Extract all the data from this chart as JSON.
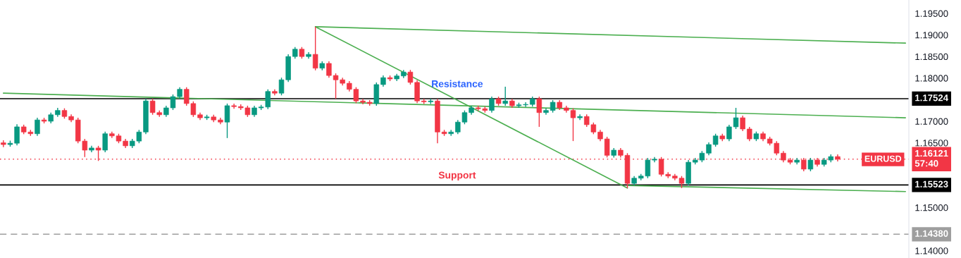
{
  "chart_data": {
    "type": "candlestick",
    "categories": [
      null,
      null,
      null,
      null,
      null,
      null,
      null,
      null,
      null,
      null,
      null,
      null,
      null,
      null,
      null,
      null,
      null,
      null,
      null,
      null,
      null,
      null,
      null,
      null,
      null,
      null,
      null,
      null,
      null,
      null,
      null,
      null,
      null,
      null,
      null,
      null,
      null,
      null,
      null,
      null,
      null,
      null,
      null,
      null,
      null,
      null,
      null,
      null,
      null,
      null,
      null,
      null,
      null,
      null,
      null,
      null,
      null,
      null,
      null,
      null,
      null,
      null,
      null,
      null,
      null,
      null,
      null,
      null,
      null,
      null,
      null,
      null,
      null,
      null,
      null,
      null,
      null,
      null,
      null,
      null,
      null,
      null,
      null,
      null,
      null,
      null,
      null,
      null,
      null,
      null,
      null,
      null,
      null,
      null,
      null,
      null,
      null,
      null,
      null,
      null,
      null,
      null,
      null,
      null,
      null,
      null,
      null,
      null,
      null,
      null,
      null,
      null,
      null,
      null,
      null,
      null,
      null,
      null,
      null,
      null,
      null,
      null,
      null,
      null,
      null,
      null,
      null,
      null,
      null,
      null,
      null,
      null,
      null,
      null
    ],
    "ohlc": [
      [
        1.165,
        1.1656,
        1.164,
        1.1646
      ],
      [
        1.1646,
        1.1655,
        1.1641,
        1.1649
      ],
      [
        1.1649,
        1.1693,
        1.1644,
        1.1687
      ],
      [
        1.1687,
        1.1692,
        1.167,
        1.1675
      ],
      [
        1.1675,
        1.168,
        1.1666,
        1.1671
      ],
      [
        1.1671,
        1.1708,
        1.1666,
        1.1703
      ],
      [
        1.1703,
        1.1708,
        1.1695,
        1.17
      ],
      [
        1.17,
        1.172,
        1.1695,
        1.1715
      ],
      [
        1.1715,
        1.1731,
        1.171,
        1.1725
      ],
      [
        1.1725,
        1.173,
        1.1706,
        1.1711
      ],
      [
        1.1711,
        1.1716,
        1.1698,
        1.1703
      ],
      [
        1.1703,
        1.1708,
        1.1649,
        1.1654
      ],
      [
        1.1654,
        1.1659,
        1.1617,
        1.1633
      ],
      [
        1.1633,
        1.1643,
        1.1628,
        1.1638
      ],
      [
        1.1638,
        1.1643,
        1.1608,
        1.1633
      ],
      [
        1.1633,
        1.1676,
        1.1628,
        1.1671
      ],
      [
        1.1671,
        1.1676,
        1.1661,
        1.1666
      ],
      [
        1.1666,
        1.1671,
        1.1649,
        1.1654
      ],
      [
        1.1654,
        1.1659,
        1.1638,
        1.1643
      ],
      [
        1.1643,
        1.1659,
        1.1638,
        1.1654
      ],
      [
        1.1654,
        1.168,
        1.1649,
        1.1675
      ],
      [
        1.1675,
        1.1752,
        1.167,
        1.1747
      ],
      [
        1.1747,
        1.1752,
        1.1715,
        1.172
      ],
      [
        1.172,
        1.1725,
        1.171,
        1.1715
      ],
      [
        1.1715,
        1.1736,
        1.171,
        1.1731
      ],
      [
        1.1731,
        1.1762,
        1.1726,
        1.1757
      ],
      [
        1.1757,
        1.1779,
        1.1752,
        1.1774
      ],
      [
        1.1774,
        1.1779,
        1.1736,
        1.1741
      ],
      [
        1.1741,
        1.1746,
        1.171,
        1.1715
      ],
      [
        1.1715,
        1.172,
        1.1703,
        1.1708
      ],
      [
        1.1708,
        1.1715,
        1.1703,
        1.171
      ],
      [
        1.171,
        1.1715,
        1.1698,
        1.1703
      ],
      [
        1.1703,
        1.1708,
        1.1693,
        1.1698
      ],
      [
        1.1698,
        1.1741,
        1.1661,
        1.1736
      ],
      [
        1.1736,
        1.1741,
        1.1729,
        1.1734
      ],
      [
        1.1734,
        1.1739,
        1.1726,
        1.1731
      ],
      [
        1.1731,
        1.1736,
        1.171,
        1.1715
      ],
      [
        1.1715,
        1.1736,
        1.171,
        1.1731
      ],
      [
        1.1731,
        1.1738,
        1.1726,
        1.1733
      ],
      [
        1.1733,
        1.1774,
        1.1728,
        1.1769
      ],
      [
        1.1769,
        1.1774,
        1.176,
        1.1765
      ],
      [
        1.1765,
        1.1801,
        1.176,
        1.1796
      ],
      [
        1.1796,
        1.1855,
        1.1791,
        1.185
      ],
      [
        1.185,
        1.1872,
        1.1845,
        1.1867
      ],
      [
        1.1867,
        1.1872,
        1.1845,
        1.185
      ],
      [
        1.185,
        1.186,
        1.1845,
        1.1855
      ],
      [
        1.1855,
        1.1919,
        1.1818,
        1.1823
      ],
      [
        1.1823,
        1.1839,
        1.1818,
        1.1834
      ],
      [
        1.1834,
        1.1839,
        1.1801,
        1.1806
      ],
      [
        1.1806,
        1.1811,
        1.1752,
        1.1796
      ],
      [
        1.1796,
        1.1801,
        1.1783,
        1.1788
      ],
      [
        1.1788,
        1.1793,
        1.1769,
        1.1774
      ],
      [
        1.1774,
        1.1779,
        1.1742,
        1.1747
      ],
      [
        1.1747,
        1.1752,
        1.1739,
        1.1744
      ],
      [
        1.1744,
        1.1749,
        1.1736,
        1.1741
      ],
      [
        1.1741,
        1.179,
        1.1736,
        1.1785
      ],
      [
        1.1785,
        1.1806,
        1.178,
        1.1801
      ],
      [
        1.1801,
        1.1806,
        1.1793,
        1.1798
      ],
      [
        1.1798,
        1.181,
        1.1793,
        1.1805
      ],
      [
        1.1805,
        1.1819,
        1.18,
        1.1814
      ],
      [
        1.1814,
        1.1819,
        1.1785,
        1.179
      ],
      [
        1.179,
        1.1795,
        1.1742,
        1.1747
      ],
      [
        1.1747,
        1.1752,
        1.174,
        1.1745
      ],
      [
        1.1745,
        1.1752,
        1.174,
        1.1747
      ],
      [
        1.1747,
        1.1752,
        1.1649,
        1.1675
      ],
      [
        1.1675,
        1.168,
        1.1666,
        1.1671
      ],
      [
        1.1671,
        1.168,
        1.1666,
        1.1675
      ],
      [
        1.1675,
        1.1703,
        1.167,
        1.1698
      ],
      [
        1.1698,
        1.1725,
        1.1693,
        1.172
      ],
      [
        1.172,
        1.1736,
        1.1715,
        1.1731
      ],
      [
        1.1731,
        1.1736,
        1.1724,
        1.1729
      ],
      [
        1.1729,
        1.1734,
        1.172,
        1.1725
      ],
      [
        1.1725,
        1.1757,
        1.172,
        1.1752
      ],
      [
        1.1752,
        1.1757,
        1.1736,
        1.1741
      ],
      [
        1.1741,
        1.178,
        1.1736,
        1.1747
      ],
      [
        1.1747,
        1.1752,
        1.1731,
        1.1736
      ],
      [
        1.1736,
        1.1743,
        1.1731,
        1.1738
      ],
      [
        1.1738,
        1.1744,
        1.1733,
        1.1739
      ],
      [
        1.1739,
        1.1757,
        1.1734,
        1.1752
      ],
      [
        1.1752,
        1.1757,
        1.1687,
        1.172
      ],
      [
        1.172,
        1.173,
        1.1715,
        1.1725
      ],
      [
        1.1725,
        1.1749,
        1.172,
        1.1744
      ],
      [
        1.1744,
        1.1749,
        1.1726,
        1.1731
      ],
      [
        1.1731,
        1.1736,
        1.172,
        1.1725
      ],
      [
        1.1725,
        1.173,
        1.1654,
        1.1708
      ],
      [
        1.1708,
        1.1716,
        1.1703,
        1.1711
      ],
      [
        1.1711,
        1.1716,
        1.1687,
        1.1692
      ],
      [
        1.1692,
        1.1697,
        1.167,
        1.1675
      ],
      [
        1.1675,
        1.168,
        1.1654,
        1.1659
      ],
      [
        1.1659,
        1.1664,
        1.1616,
        1.1621
      ],
      [
        1.1621,
        1.1638,
        1.1616,
        1.1633
      ],
      [
        1.1633,
        1.1638,
        1.1616,
        1.1621
      ],
      [
        1.1621,
        1.1626,
        1.1545,
        1.1556
      ],
      [
        1.1556,
        1.1573,
        1.1551,
        1.1568
      ],
      [
        1.1568,
        1.1578,
        1.1563,
        1.1573
      ],
      [
        1.1573,
        1.1615,
        1.1568,
        1.161
      ],
      [
        1.161,
        1.1617,
        1.1605,
        1.1612
      ],
      [
        1.1612,
        1.1617,
        1.1572,
        1.1577
      ],
      [
        1.1577,
        1.1582,
        1.1568,
        1.1573
      ],
      [
        1.1573,
        1.1578,
        1.1563,
        1.1568
      ],
      [
        1.1568,
        1.1573,
        1.1545,
        1.1556
      ],
      [
        1.1556,
        1.161,
        1.1551,
        1.1605
      ],
      [
        1.1605,
        1.1615,
        1.16,
        1.161
      ],
      [
        1.161,
        1.1631,
        1.1605,
        1.1626
      ],
      [
        1.1626,
        1.1651,
        1.1621,
        1.1646
      ],
      [
        1.1646,
        1.1671,
        1.1641,
        1.1666
      ],
      [
        1.1666,
        1.1671,
        1.1654,
        1.1659
      ],
      [
        1.1659,
        1.1692,
        1.1654,
        1.1687
      ],
      [
        1.1687,
        1.1731,
        1.1682,
        1.1708
      ],
      [
        1.1708,
        1.1713,
        1.1677,
        1.1682
      ],
      [
        1.1682,
        1.1687,
        1.1654,
        1.1659
      ],
      [
        1.1659,
        1.1676,
        1.1654,
        1.1671
      ],
      [
        1.1671,
        1.1676,
        1.1654,
        1.1659
      ],
      [
        1.1659,
        1.1664,
        1.1644,
        1.1649
      ],
      [
        1.1649,
        1.1654,
        1.1621,
        1.1626
      ],
      [
        1.1626,
        1.1631,
        1.1605,
        1.161
      ],
      [
        1.161,
        1.1615,
        1.16,
        1.1605
      ],
      [
        1.1605,
        1.1615,
        1.16,
        1.161
      ],
      [
        1.161,
        1.1615,
        1.1584,
        1.1589
      ],
      [
        1.1589,
        1.1615,
        1.1584,
        1.161
      ],
      [
        1.161,
        1.1615,
        1.1595,
        1.16
      ],
      [
        1.16,
        1.1615,
        1.1595,
        1.161
      ],
      [
        1.161,
        1.1623,
        1.1605,
        1.1618
      ],
      [
        1.1618,
        1.1623,
        1.1607,
        1.1612
      ],
      null,
      null,
      null,
      null,
      null,
      null,
      null,
      null,
      null,
      null
    ],
    "series": [
      {
        "type": "line",
        "color": "#4caf50",
        "values": [
          null,
          null,
          null,
          null,
          null,
          null,
          null,
          null,
          null,
          null,
          null,
          null,
          null,
          null,
          null,
          null,
          null,
          null,
          null,
          null,
          null,
          null,
          null,
          null,
          null,
          null,
          null,
          null,
          null,
          null,
          null,
          null,
          null,
          null,
          null,
          null,
          null,
          null,
          null,
          null,
          null,
          null,
          null,
          null,
          null,
          null,
          1.1919,
          null,
          null,
          null,
          null,
          null,
          null,
          null,
          null,
          null,
          null,
          null,
          null,
          null,
          null,
          null,
          null,
          null,
          null,
          null,
          null,
          null,
          null,
          null,
          null,
          null,
          null,
          null,
          null,
          null,
          null,
          null,
          null,
          null,
          null,
          null,
          null,
          null,
          null,
          null,
          null,
          null,
          null,
          null,
          null,
          null,
          null,
          null,
          null,
          null,
          null,
          null,
          null,
          null,
          null,
          null,
          null,
          null,
          null,
          null,
          null,
          null,
          null,
          null,
          null,
          null,
          null,
          null,
          null,
          null,
          null,
          null,
          null,
          null,
          null,
          null,
          null,
          null,
          null,
          null,
          null,
          null,
          null,
          null,
          null,
          null,
          null,
          1.1881
        ]
      },
      {
        "type": "line",
        "color": "#4caf50",
        "values": [
          null,
          null,
          null,
          null,
          null,
          null,
          null,
          null,
          null,
          null,
          null,
          null,
          null,
          null,
          null,
          null,
          null,
          null,
          null,
          null,
          null,
          null,
          null,
          null,
          null,
          null,
          null,
          null,
          null,
          null,
          null,
          null,
          null,
          null,
          null,
          null,
          null,
          null,
          null,
          null,
          null,
          null,
          null,
          null,
          null,
          null,
          1.1919,
          null,
          null,
          null,
          null,
          null,
          null,
          null,
          null,
          null,
          null,
          null,
          null,
          null,
          null,
          null,
          null,
          null,
          null,
          null,
          null,
          null,
          null,
          null,
          null,
          null,
          null,
          null,
          null,
          null,
          null,
          null,
          null,
          null,
          null,
          null,
          null,
          null,
          null,
          null,
          null,
          null,
          null,
          null,
          null,
          null,
          1.1545,
          null,
          null,
          null,
          null,
          null,
          null,
          null,
          null,
          null,
          null,
          null,
          null,
          null,
          null,
          null,
          null,
          null,
          null,
          null,
          null,
          null,
          null,
          null,
          null,
          null,
          null,
          null,
          null,
          null,
          null,
          null,
          null,
          null,
          null,
          null,
          null,
          null,
          null,
          null,
          null,
          null
        ]
      },
      {
        "type": "line",
        "color": "#4caf50",
        "values": [
          1.1765,
          null,
          null,
          null,
          null,
          null,
          null,
          null,
          null,
          null,
          null,
          null,
          null,
          null,
          null,
          null,
          null,
          null,
          null,
          null,
          null,
          null,
          null,
          null,
          null,
          null,
          null,
          null,
          null,
          null,
          null,
          null,
          null,
          null,
          null,
          null,
          null,
          null,
          null,
          null,
          null,
          null,
          null,
          null,
          null,
          null,
          null,
          null,
          null,
          null,
          null,
          null,
          null,
          null,
          null,
          null,
          null,
          null,
          null,
          null,
          null,
          null,
          null,
          null,
          null,
          null,
          null,
          null,
          null,
          null,
          null,
          null,
          null,
          null,
          null,
          null,
          null,
          null,
          null,
          null,
          null,
          null,
          null,
          null,
          null,
          null,
          null,
          null,
          null,
          null,
          null,
          null,
          null,
          null,
          null,
          null,
          null,
          null,
          null,
          null,
          null,
          null,
          null,
          null,
          null,
          null,
          null,
          null,
          null,
          null,
          null,
          null,
          null,
          null,
          null,
          null,
          null,
          null,
          null,
          null,
          null,
          null,
          null,
          null,
          null,
          null,
          null,
          null,
          null,
          null,
          null,
          null,
          null,
          1.1708
        ]
      },
      {
        "type": "line",
        "color": "#4caf50",
        "values": [
          null,
          null,
          null,
          null,
          null,
          null,
          null,
          null,
          null,
          null,
          null,
          null,
          null,
          null,
          null,
          null,
          null,
          null,
          null,
          null,
          null,
          null,
          null,
          null,
          null,
          null,
          null,
          null,
          null,
          null,
          null,
          null,
          null,
          null,
          null,
          null,
          null,
          null,
          null,
          null,
          null,
          null,
          null,
          null,
          null,
          null,
          null,
          null,
          null,
          null,
          null,
          null,
          null,
          null,
          null,
          null,
          null,
          null,
          null,
          null,
          null,
          null,
          null,
          null,
          null,
          null,
          null,
          null,
          null,
          null,
          null,
          null,
          null,
          null,
          null,
          null,
          null,
          null,
          null,
          null,
          null,
          null,
          null,
          null,
          null,
          null,
          null,
          null,
          null,
          null,
          null,
          null,
          1.1551,
          null,
          null,
          null,
          null,
          null,
          null,
          null,
          null,
          null,
          null,
          null,
          null,
          null,
          null,
          null,
          null,
          null,
          null,
          null,
          null,
          null,
          null,
          null,
          null,
          null,
          null,
          null,
          null,
          null,
          null,
          null,
          null,
          null,
          null,
          null,
          null,
          null,
          null,
          null,
          null,
          1.1537
        ]
      }
    ],
    "ylim": [
      1.1383,
      1.1981
    ],
    "yticks": [
      {
        "value": 1.14,
        "label": "1.14000"
      },
      {
        "value": 1.15,
        "label": "1.15000"
      },
      {
        "value": 1.165,
        "label": "1.16500"
      },
      {
        "value": 1.17,
        "label": "1.17000"
      },
      {
        "value": 1.18,
        "label": "1.18000"
      },
      {
        "value": 1.185,
        "label": "1.18500"
      },
      {
        "value": 1.19,
        "label": "1.19000"
      },
      {
        "value": 1.195,
        "label": "1.19500"
      }
    ],
    "ref_lines": [
      {
        "axis": "y",
        "value": 1.17524,
        "label": "1.17524",
        "color": "#000000",
        "line_style": "solid"
      },
      {
        "axis": "y",
        "value": 1.15523,
        "label": "1.15523",
        "color": "#000000",
        "line_style": "solid"
      },
      {
        "axis": "y",
        "value": 1.1438,
        "label": "1.14380",
        "color": "#9e9e9e",
        "line_style": "dashed"
      },
      {
        "axis": "y",
        "value": 1.16121,
        "label": "1.16121\n57:40",
        "color": "#f23645",
        "line_style": "dotted"
      }
    ],
    "annotations": [
      "Resistance",
      "Support",
      "EURUSD"
    ],
    "grid": false,
    "legend": false,
    "tick_labels": "y"
  }
}
